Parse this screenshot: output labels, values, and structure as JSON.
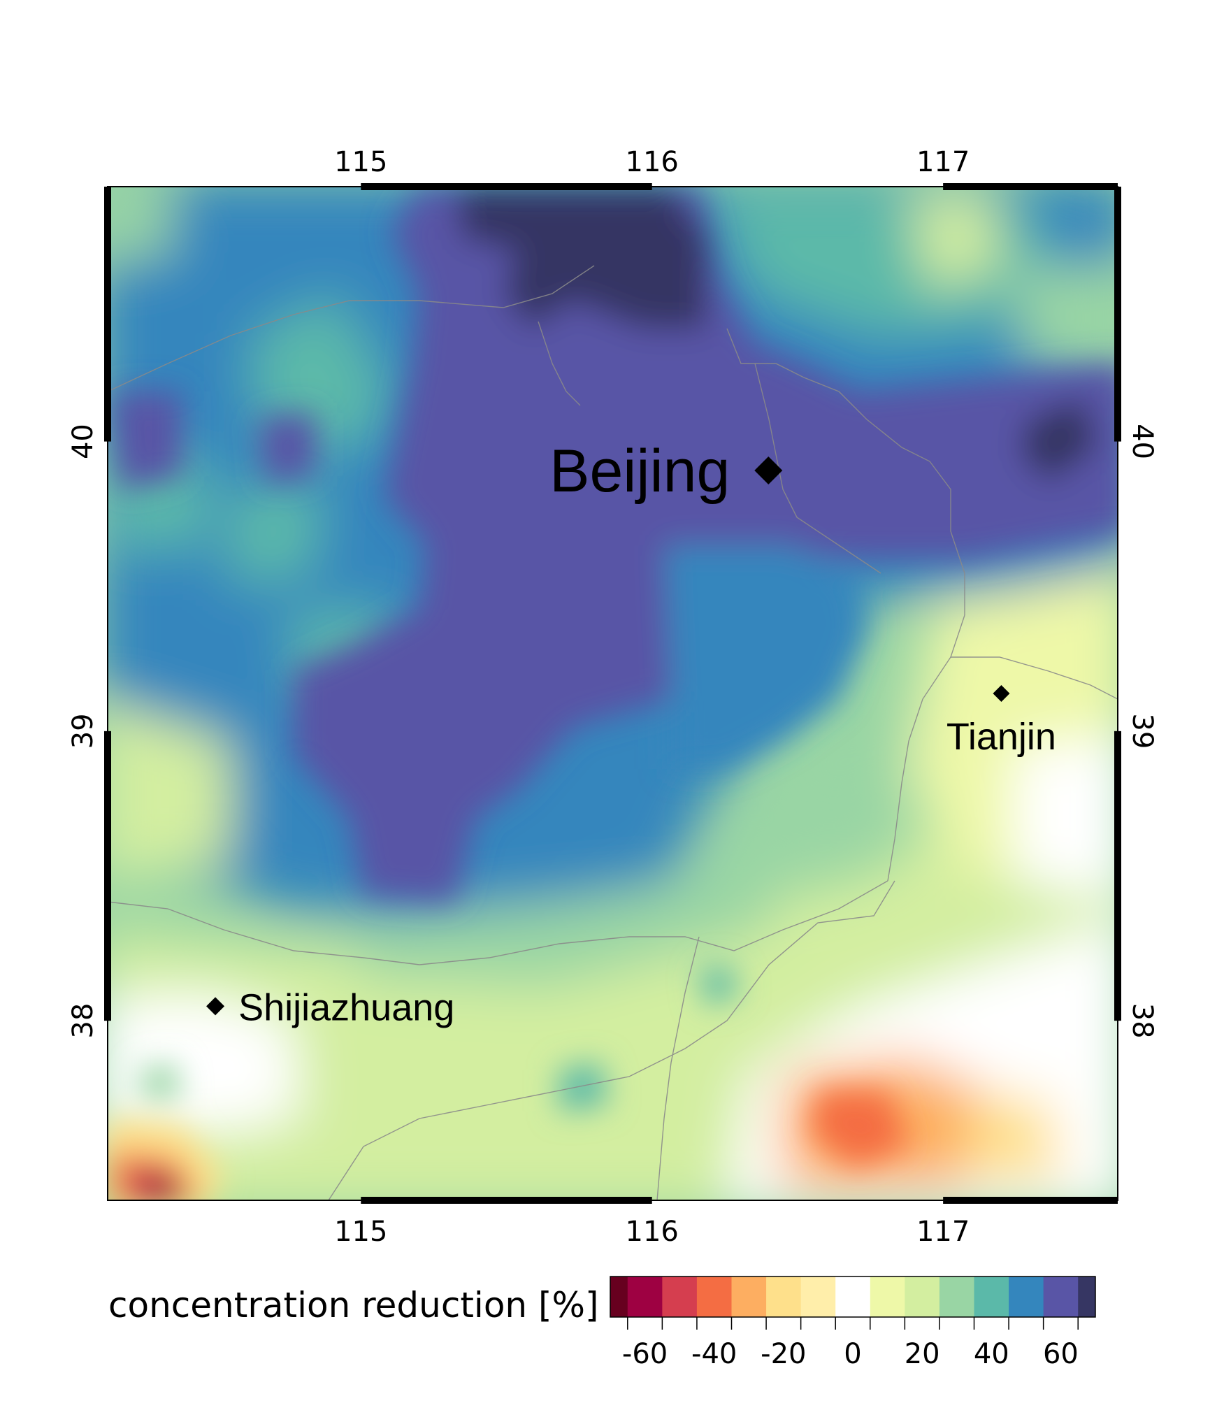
{
  "map": {
    "lon_range": [
      114.13,
      117.6
    ],
    "lat_range": [
      37.38,
      40.88
    ],
    "lon_ticks": [
      "115",
      "116",
      "117"
    ],
    "lat_ticks": [
      "38",
      "39",
      "40"
    ],
    "cities": [
      {
        "name": "Beijing",
        "lon": 116.4,
        "lat": 39.9
      },
      {
        "name": "Tianjin",
        "lon": 117.2,
        "lat": 39.13
      },
      {
        "name": "Shijiazhuang",
        "lon": 114.5,
        "lat": 38.05
      }
    ]
  },
  "legend": {
    "title": "concentration reduction [%]",
    "bins": [
      -70,
      -65,
      -55,
      -45,
      -35,
      -25,
      -15,
      -5,
      5,
      15,
      25,
      35,
      45,
      55,
      65,
      70
    ],
    "tick_labels": [
      "-60",
      "-40",
      "-20",
      "0",
      "20",
      "40",
      "60"
    ],
    "colors": [
      "#67001f",
      "#9e0142",
      "#d53e4f",
      "#f46d43",
      "#fdae61",
      "#fee08b",
      "#ffeeaa",
      "#ffffff",
      "#eef8a8",
      "#d3eea0",
      "#99d5a4",
      "#5bb9a9",
      "#3486bd",
      "#5955a6",
      "#363663"
    ]
  }
}
